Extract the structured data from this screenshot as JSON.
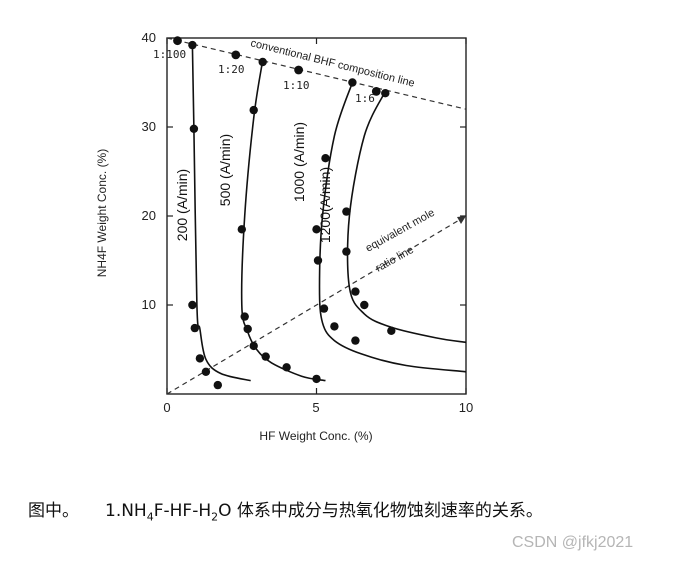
{
  "chart_data": {
    "type": "line",
    "xlabel": "HF Weight Conc. (%)",
    "ylabel": "NH4F Weight Conc. (%)",
    "xlim": [
      0,
      10
    ],
    "ylim": [
      0,
      40
    ],
    "x_ticks": [
      "0",
      "5",
      "10"
    ],
    "y_ticks": [
      "10",
      "20",
      "30",
      "40"
    ],
    "grid": false,
    "series": [
      {
        "name": "200 (A/min)",
        "x": [
          0.85,
          0.9,
          1.0,
          1.1,
          1.3,
          1.8,
          2.8
        ],
        "y": [
          39.2,
          29.8,
          10.0,
          7.3,
          3.9,
          2.3,
          1.5
        ],
        "points": [
          [
            0.85,
            39.2
          ],
          [
            0.9,
            29.8
          ],
          [
            0.85,
            10.0
          ],
          [
            0.93,
            7.4
          ],
          [
            1.1,
            4.0
          ],
          [
            1.3,
            2.5
          ],
          [
            1.7,
            1.0
          ]
        ]
      },
      {
        "name": "500 (A/min)",
        "x": [
          3.2,
          2.9,
          2.6,
          2.5,
          2.7,
          3.0,
          3.5,
          4.5,
          5.3
        ],
        "y": [
          37.5,
          31.0,
          20.0,
          10.0,
          7.0,
          5.0,
          3.5,
          2.0,
          1.5
        ],
        "points": [
          [
            3.2,
            37.3
          ],
          [
            2.9,
            31.9
          ],
          [
            2.5,
            18.5
          ],
          [
            2.6,
            8.7
          ],
          [
            2.7,
            7.3
          ],
          [
            2.9,
            5.4
          ],
          [
            3.3,
            4.2
          ],
          [
            4.0,
            3.0
          ],
          [
            5.0,
            1.7
          ]
        ]
      },
      {
        "name": "1000 (A/min)",
        "x": [
          6.2,
          5.6,
          5.2,
          5.1,
          5.2,
          5.6,
          6.5,
          8.0,
          10.0
        ],
        "y": [
          35.0,
          29.0,
          20.0,
          12.0,
          8.0,
          6.0,
          4.5,
          3.2,
          2.5
        ],
        "points": [
          [
            6.2,
            35.0
          ],
          [
            5.3,
            26.5
          ],
          [
            5.0,
            18.5
          ],
          [
            5.05,
            15.0
          ],
          [
            5.25,
            9.6
          ],
          [
            5.6,
            7.6
          ],
          [
            6.3,
            6.0
          ]
        ]
      },
      {
        "name": "1200(A/min)",
        "x": [
          7.3,
          6.6,
          6.1,
          6.1,
          6.6,
          7.5,
          9.0,
          10.0
        ],
        "y": [
          34.0,
          29.0,
          20.0,
          12.0,
          9.0,
          7.5,
          6.3,
          5.8
        ],
        "points": [
          [
            7.0,
            34.0
          ],
          [
            7.3,
            33.8
          ],
          [
            6.0,
            20.5
          ],
          [
            6.0,
            16.0
          ],
          [
            6.3,
            11.5
          ],
          [
            6.6,
            10.0
          ],
          [
            7.5,
            7.1
          ]
        ]
      }
    ],
    "lines": [
      {
        "name": "conventional BHF composition line",
        "x": [
          0.0,
          10.0
        ],
        "y": [
          40.0,
          32.0
        ],
        "style": "dashed"
      },
      {
        "name": "equivalent mole ratio line",
        "x": [
          0.0,
          10.0
        ],
        "y": [
          0.0,
          20.0
        ],
        "style": "dashed"
      }
    ],
    "composition_points": [
      [
        0.35,
        39.7
      ],
      [
        2.3,
        38.1
      ],
      [
        4.4,
        36.4
      ],
      [
        7.0,
        34.0
      ]
    ],
    "annotations": {
      "conventional_line_label": "conventional BHF composition line",
      "equivalent_line_label_1": "equivalent mole",
      "equivalent_line_label_2": "ratio line",
      "ratios": [
        "1:100",
        "1:20",
        "1:10",
        "1:6"
      ]
    }
  },
  "caption": {
    "prefix": "图中。",
    "formula_1": "1.NH",
    "sub_4": "4",
    "formula_2": "F-HF-H",
    "sub_2": "2",
    "formula_3": "O 体系中成分与热氧化物蚀刻速率的关系。"
  },
  "watermark": "CSDN @jfkj2021"
}
